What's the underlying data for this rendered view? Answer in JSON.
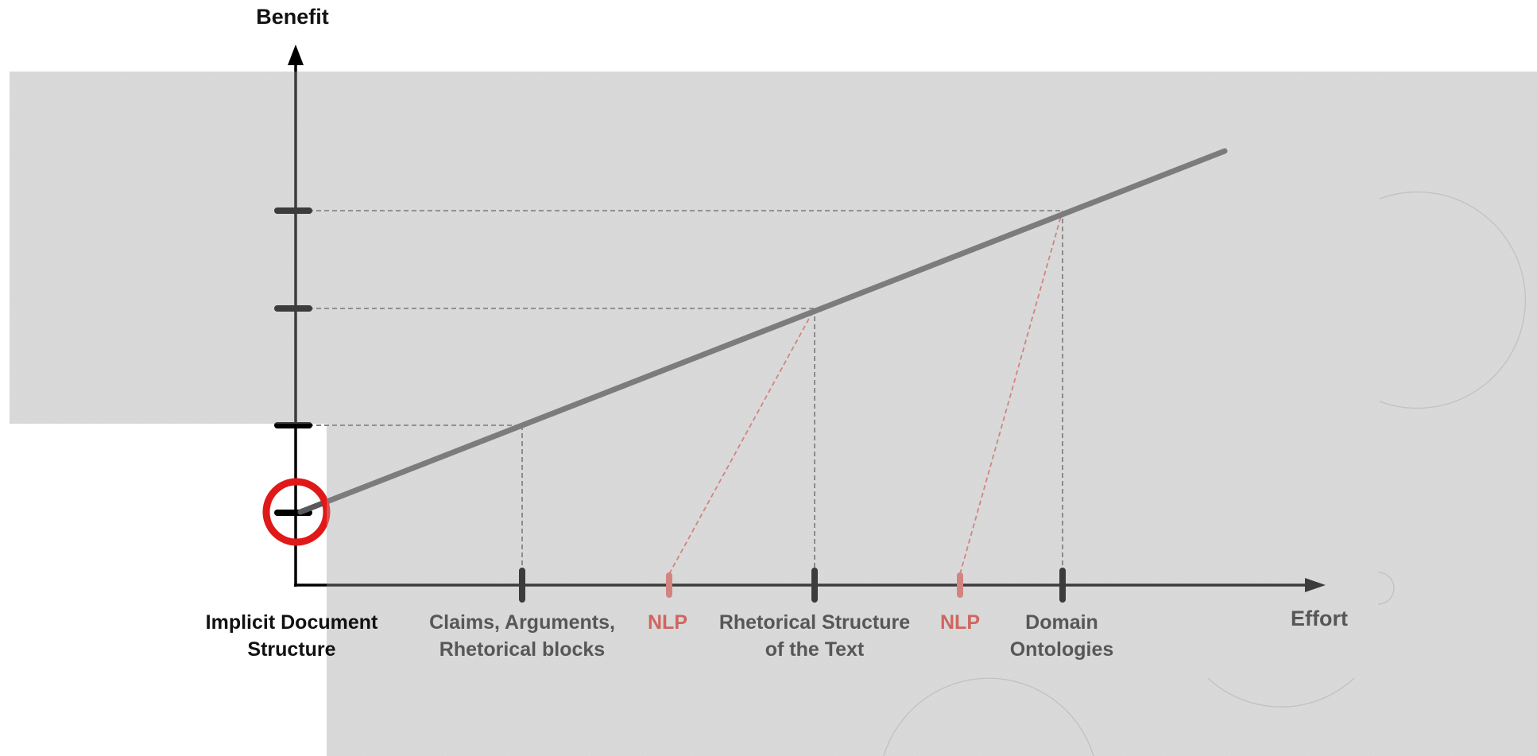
{
  "diagram": {
    "y_axis_label": "Benefit",
    "x_axis_label": "Effort",
    "x_labels": [
      {
        "line1": "Implicit Document",
        "line2": "Structure",
        "style": "dark"
      },
      {
        "line1": "Claims, Arguments,",
        "line2": "Rhetorical blocks",
        "style": "grey"
      },
      {
        "line1": "NLP",
        "line2": "",
        "style": "red"
      },
      {
        "line1": "Rhetorical Structure",
        "line2": "of the Text",
        "style": "grey"
      },
      {
        "line1": "NLP",
        "line2": "",
        "style": "red"
      },
      {
        "line1": "Domain",
        "line2": "Ontologies",
        "style": "grey"
      }
    ],
    "highlighted_point": "Implicit Document Structure",
    "colors": {
      "axis": "#000000",
      "trend_line": "#595959",
      "guide_lines": "#555555",
      "nlp": "#d0655f",
      "highlight_ring": "#e01818",
      "overlay": "#d8d8d8"
    }
  }
}
